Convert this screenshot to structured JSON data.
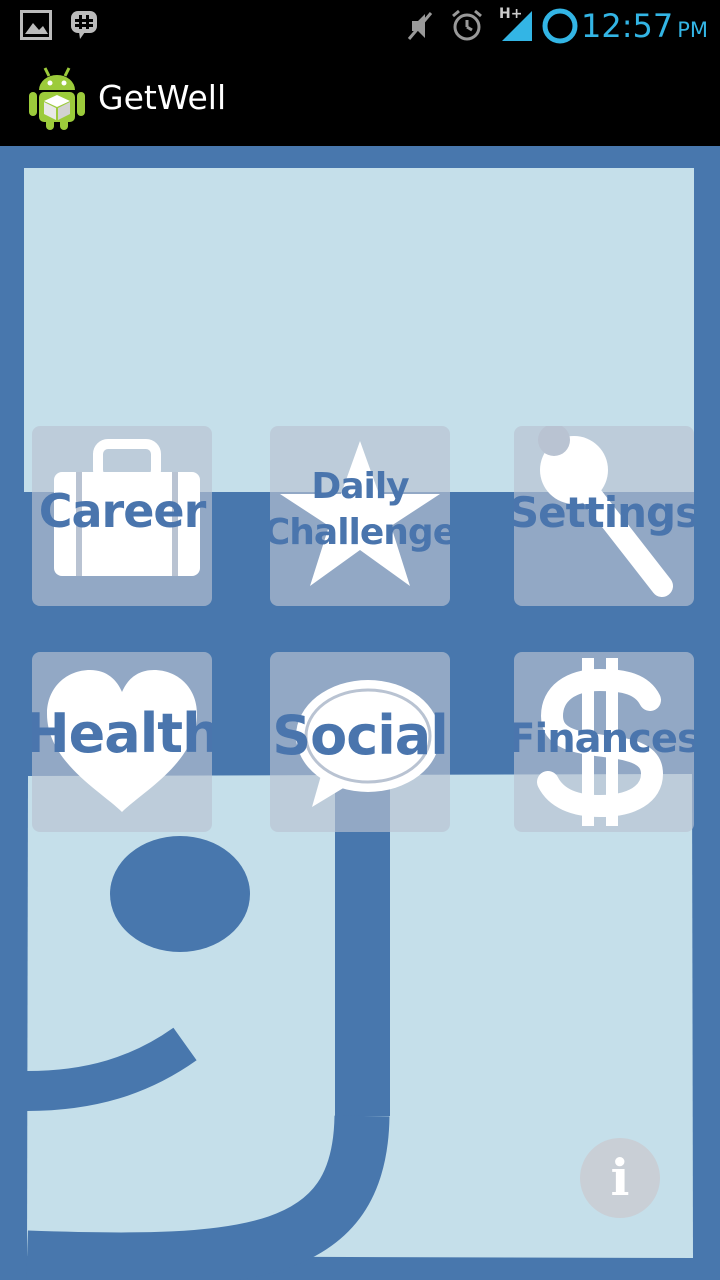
{
  "status_bar": {
    "time": "12:57",
    "ampm": "PM",
    "network": "H+",
    "icons": [
      "image-icon",
      "chat-notification-icon",
      "mute-icon",
      "alarm-icon",
      "signal-icon",
      "sync-icon"
    ]
  },
  "action_bar": {
    "app_icon": "android-app-icon",
    "title": "GetWell"
  },
  "tiles": {
    "career": {
      "label": "Career",
      "icon": "briefcase-icon"
    },
    "daily_challenge": {
      "line1": "Daily",
      "line2": "Challenge",
      "icon": "star-icon"
    },
    "settings": {
      "label": "Settings",
      "icon": "wrench-icon"
    },
    "health": {
      "label": "Health",
      "icon": "heart-icon"
    },
    "social": {
      "label": "Social",
      "icon": "speech-bubble-icon"
    },
    "finances": {
      "label": "Finances",
      "icon": "dollar-icon"
    }
  },
  "info_button": {
    "label": "i",
    "icon": "info-icon"
  },
  "colors": {
    "brand_blue": "#4877ad",
    "light_panel": "#c5dfea",
    "tile_overlay": "#b9c3d2",
    "label_blue": "#4a75ad",
    "clock_blue": "#33b5e5"
  }
}
